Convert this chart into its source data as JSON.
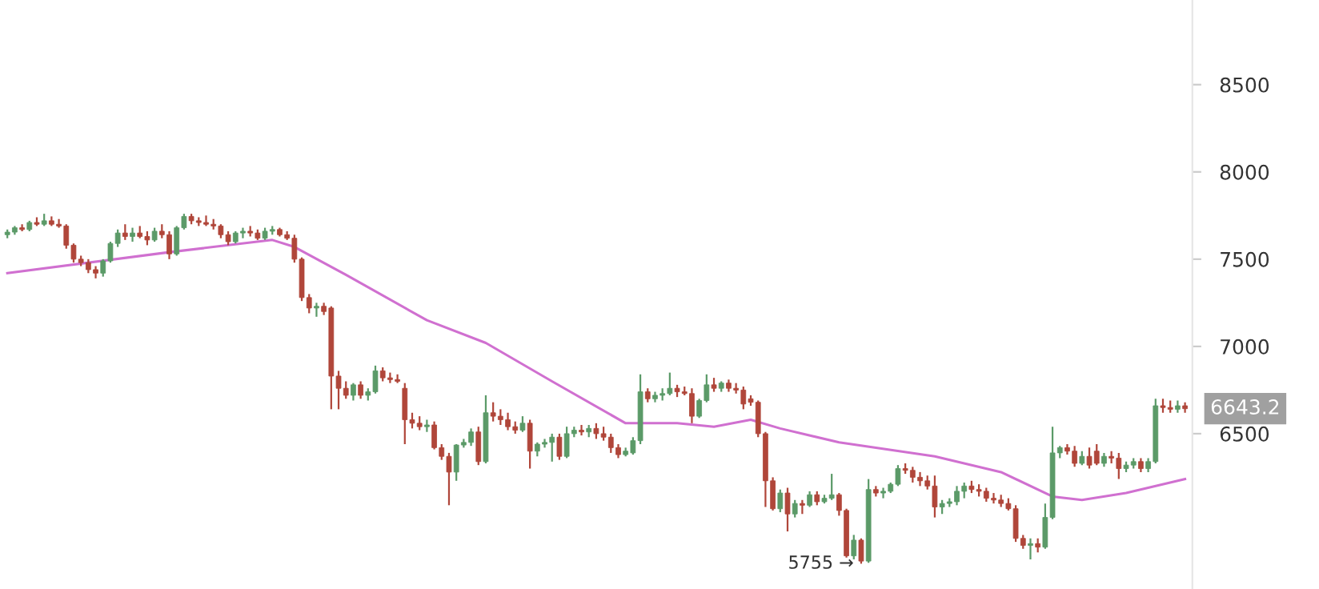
{
  "chart_data": {
    "type": "candlestick",
    "categories": [
      null,
      null,
      null,
      null,
      null,
      null,
      null,
      null,
      null,
      null,
      null,
      null,
      null,
      null,
      null,
      null,
      null,
      null,
      null,
      null,
      null,
      null,
      null,
      null,
      null,
      null,
      null,
      null,
      null,
      null,
      null,
      null,
      null,
      null,
      null,
      null,
      null,
      null,
      null,
      null,
      null,
      null,
      null,
      null,
      null,
      null,
      null,
      null,
      null,
      null,
      null,
      null,
      null,
      null,
      null,
      null,
      null,
      null,
      null,
      null,
      null,
      null,
      null,
      null,
      null,
      null,
      null,
      null,
      null,
      null,
      null,
      null,
      null,
      null,
      null,
      null,
      null,
      null,
      null,
      null,
      null,
      null,
      null,
      null,
      null,
      null,
      null,
      null,
      null,
      null,
      null,
      null,
      null,
      null,
      null,
      null,
      null,
      null,
      null,
      null,
      null,
      null,
      null,
      null,
      null,
      null,
      null,
      null,
      null,
      null,
      null,
      null,
      null,
      null,
      null,
      null,
      null,
      null,
      null,
      null,
      null,
      null,
      null,
      null,
      null,
      null,
      null,
      null,
      null,
      null,
      null,
      null,
      null,
      null,
      null,
      null,
      null,
      null,
      null,
      null,
      null,
      null,
      null,
      null,
      null,
      null,
      null,
      null,
      null,
      null,
      null,
      null,
      null,
      null,
      null,
      null,
      null,
      null,
      null,
      null,
      null
    ],
    "ohlc": [
      [
        7640,
        7670,
        7620,
        7655
      ],
      [
        7655,
        7690,
        7640,
        7680
      ],
      [
        7680,
        7700,
        7660,
        7670
      ],
      [
        7670,
        7720,
        7660,
        7710
      ],
      [
        7710,
        7740,
        7690,
        7700
      ],
      [
        7700,
        7760,
        7690,
        7720
      ],
      [
        7720,
        7745,
        7690,
        7700
      ],
      [
        7700,
        7730,
        7680,
        7690
      ],
      [
        7690,
        7700,
        7560,
        7580
      ],
      [
        7580,
        7590,
        7480,
        7500
      ],
      [
        7500,
        7520,
        7460,
        7480
      ],
      [
        7480,
        7500,
        7420,
        7440
      ],
      [
        7440,
        7460,
        7390,
        7420
      ],
      [
        7420,
        7500,
        7400,
        7490
      ],
      [
        7490,
        7600,
        7480,
        7590
      ],
      [
        7590,
        7670,
        7570,
        7650
      ],
      [
        7650,
        7700,
        7610,
        7630
      ],
      [
        7630,
        7680,
        7600,
        7650
      ],
      [
        7650,
        7690,
        7620,
        7630
      ],
      [
        7630,
        7660,
        7580,
        7610
      ],
      [
        7610,
        7680,
        7600,
        7660
      ],
      [
        7660,
        7700,
        7620,
        7640
      ],
      [
        7640,
        7660,
        7500,
        7530
      ],
      [
        7530,
        7690,
        7520,
        7680
      ],
      [
        7680,
        7760,
        7670,
        7745
      ],
      [
        7745,
        7760,
        7700,
        7720
      ],
      [
        7720,
        7740,
        7690,
        7710
      ],
      [
        7710,
        7750,
        7690,
        7700
      ],
      [
        7700,
        7730,
        7670,
        7690
      ],
      [
        7690,
        7700,
        7620,
        7640
      ],
      [
        7640,
        7660,
        7580,
        7600
      ],
      [
        7600,
        7660,
        7590,
        7650
      ],
      [
        7650,
        7680,
        7620,
        7660
      ],
      [
        7660,
        7690,
        7630,
        7650
      ],
      [
        7650,
        7670,
        7610,
        7620
      ],
      [
        7620,
        7680,
        7610,
        7660
      ],
      [
        7660,
        7690,
        7640,
        7670
      ],
      [
        7670,
        7680,
        7630,
        7640
      ],
      [
        7640,
        7660,
        7610,
        7620
      ],
      [
        7620,
        7640,
        7480,
        7500
      ],
      [
        7500,
        7510,
        7260,
        7280
      ],
      [
        7280,
        7300,
        7190,
        7220
      ],
      [
        7220,
        7250,
        7170,
        7230
      ],
      [
        7230,
        7250,
        7180,
        7200
      ],
      [
        7220,
        7230,
        6640,
        6830
      ],
      [
        6830,
        6860,
        6640,
        6760
      ],
      [
        6760,
        6800,
        6700,
        6720
      ],
      [
        6720,
        6790,
        6690,
        6780
      ],
      [
        6780,
        6800,
        6700,
        6720
      ],
      [
        6720,
        6760,
        6690,
        6740
      ],
      [
        6740,
        6890,
        6730,
        6860
      ],
      [
        6860,
        6880,
        6800,
        6820
      ],
      [
        6820,
        6850,
        6790,
        6810
      ],
      [
        6810,
        6840,
        6790,
        6800
      ],
      [
        6760,
        6790,
        6440,
        6580
      ],
      [
        6580,
        6620,
        6530,
        6560
      ],
      [
        6560,
        6600,
        6520,
        6540
      ],
      [
        6540,
        6580,
        6510,
        6550
      ],
      [
        6550,
        6570,
        6410,
        6420
      ],
      [
        6420,
        6440,
        6350,
        6370
      ],
      [
        6370,
        6390,
        6090,
        6280
      ],
      [
        6280,
        6440,
        6230,
        6435
      ],
      [
        6435,
        6470,
        6420,
        6450
      ],
      [
        6450,
        6530,
        6430,
        6510
      ],
      [
        6510,
        6540,
        6320,
        6340
      ],
      [
        6340,
        6720,
        6330,
        6620
      ],
      [
        6620,
        6680,
        6570,
        6600
      ],
      [
        6600,
        6640,
        6550,
        6580
      ],
      [
        6580,
        6620,
        6520,
        6540
      ],
      [
        6540,
        6570,
        6500,
        6520
      ],
      [
        6520,
        6600,
        6510,
        6560
      ],
      [
        6560,
        6580,
        6300,
        6400
      ],
      [
        6400,
        6450,
        6370,
        6440
      ],
      [
        6440,
        6470,
        6420,
        6450
      ],
      [
        6450,
        6500,
        6340,
        6480
      ],
      [
        6480,
        6500,
        6350,
        6370
      ],
      [
        6370,
        6540,
        6360,
        6500
      ],
      [
        6500,
        6540,
        6480,
        6520
      ],
      [
        6520,
        6550,
        6490,
        6510
      ],
      [
        6510,
        6550,
        6480,
        6530
      ],
      [
        6530,
        6560,
        6470,
        6500
      ],
      [
        6500,
        6540,
        6460,
        6480
      ],
      [
        6480,
        6500,
        6390,
        6420
      ],
      [
        6420,
        6440,
        6360,
        6380
      ],
      [
        6380,
        6420,
        6370,
        6400
      ],
      [
        6390,
        6480,
        6380,
        6460
      ],
      [
        6460,
        6840,
        6440,
        6740
      ],
      [
        6740,
        6760,
        6680,
        6700
      ],
      [
        6700,
        6740,
        6680,
        6720
      ],
      [
        6720,
        6760,
        6690,
        6730
      ],
      [
        6730,
        6850,
        6720,
        6760
      ],
      [
        6760,
        6780,
        6710,
        6740
      ],
      [
        6740,
        6770,
        6720,
        6730
      ],
      [
        6730,
        6760,
        6560,
        6600
      ],
      [
        6600,
        6700,
        6590,
        6690
      ],
      [
        6690,
        6840,
        6680,
        6780
      ],
      [
        6780,
        6820,
        6740,
        6760
      ],
      [
        6760,
        6800,
        6740,
        6790
      ],
      [
        6790,
        6810,
        6740,
        6760
      ],
      [
        6760,
        6790,
        6730,
        6750
      ],
      [
        6750,
        6770,
        6640,
        6670
      ],
      [
        6700,
        6720,
        6660,
        6680
      ],
      [
        6680,
        6690,
        6480,
        6500
      ],
      [
        6500,
        6510,
        6080,
        6230
      ],
      [
        6230,
        6250,
        6060,
        6070
      ],
      [
        6070,
        6180,
        6050,
        6160
      ],
      [
        6160,
        6190,
        5940,
        6040
      ],
      [
        6040,
        6120,
        6020,
        6100
      ],
      [
        6100,
        6120,
        6040,
        6090
      ],
      [
        6090,
        6170,
        6080,
        6150
      ],
      [
        6150,
        6170,
        6090,
        6110
      ],
      [
        6110,
        6150,
        6100,
        6130
      ],
      [
        6130,
        6270,
        6120,
        6150
      ],
      [
        6150,
        6160,
        6030,
        6060
      ],
      [
        6060,
        6070,
        5790,
        5800
      ],
      [
        5800,
        5920,
        5780,
        5890
      ],
      [
        5890,
        5900,
        5755,
        5770
      ],
      [
        5770,
        6240,
        5760,
        6180
      ],
      [
        6180,
        6200,
        6140,
        6160
      ],
      [
        6160,
        6190,
        6130,
        6170
      ],
      [
        6170,
        6220,
        6160,
        6210
      ],
      [
        6210,
        6320,
        6200,
        6300
      ],
      [
        6300,
        6330,
        6270,
        6290
      ],
      [
        6290,
        6310,
        6220,
        6250
      ],
      [
        6250,
        6280,
        6200,
        6230
      ],
      [
        6230,
        6260,
        6180,
        6200
      ],
      [
        6200,
        6260,
        6020,
        6080
      ],
      [
        6080,
        6120,
        6040,
        6100
      ],
      [
        6100,
        6130,
        6080,
        6110
      ],
      [
        6110,
        6200,
        6090,
        6170
      ],
      [
        6170,
        6220,
        6130,
        6200
      ],
      [
        6200,
        6230,
        6160,
        6180
      ],
      [
        6180,
        6210,
        6140,
        6170
      ],
      [
        6170,
        6190,
        6110,
        6130
      ],
      [
        6130,
        6160,
        6100,
        6120
      ],
      [
        6120,
        6150,
        6080,
        6100
      ],
      [
        6100,
        6130,
        6060,
        6070
      ],
      [
        6070,
        6090,
        5880,
        5900
      ],
      [
        5900,
        5920,
        5840,
        5860
      ],
      [
        5860,
        5900,
        5780,
        5870
      ],
      [
        5870,
        5900,
        5820,
        5850
      ],
      [
        5850,
        6100,
        5840,
        6020
      ],
      [
        6020,
        6540,
        6010,
        6390
      ],
      [
        6390,
        6430,
        6360,
        6420
      ],
      [
        6420,
        6440,
        6380,
        6400
      ],
      [
        6400,
        6430,
        6310,
        6330
      ],
      [
        6330,
        6400,
        6320,
        6370
      ],
      [
        6370,
        6420,
        6300,
        6320
      ],
      [
        6400,
        6440,
        6320,
        6330
      ],
      [
        6330,
        6390,
        6310,
        6370
      ],
      [
        6370,
        6400,
        6330,
        6360
      ],
      [
        6360,
        6390,
        6240,
        6300
      ],
      [
        6300,
        6340,
        6280,
        6320
      ],
      [
        6320,
        6360,
        6300,
        6340
      ],
      [
        6340,
        6360,
        6280,
        6300
      ],
      [
        6300,
        6360,
        6280,
        6340
      ],
      [
        6340,
        6700,
        6330,
        6660
      ],
      [
        6660,
        6700,
        6620,
        6650
      ],
      [
        6650,
        6690,
        6620,
        6640
      ],
      [
        6640,
        6690,
        6620,
        6660
      ],
      [
        6660,
        6680,
        6620,
        6643.2
      ]
    ],
    "series": [
      {
        "type": "line",
        "color": "#d070d0",
        "values": [
          7420,
          null,
          null,
          null,
          null,
          null,
          null,
          null,
          null,
          null,
          null,
          null,
          null,
          null,
          null,
          null,
          null,
          null,
          null,
          null,
          null,
          null,
          7540,
          null,
          null,
          null,
          null,
          null,
          null,
          null,
          null,
          null,
          null,
          null,
          null,
          null,
          7610,
          null,
          null,
          7570,
          null,
          null,
          null,
          null,
          null,
          null,
          7410,
          null,
          null,
          null,
          null,
          null,
          null,
          null,
          null,
          null,
          null,
          7150,
          null,
          null,
          null,
          null,
          null,
          null,
          null,
          7020,
          null,
          null,
          null,
          null,
          null,
          null,
          null,
          null,
          6800,
          null,
          null,
          null,
          null,
          null,
          null,
          null,
          null,
          null,
          6560,
          null,
          null,
          null,
          null,
          null,
          null,
          6560,
          null,
          null,
          null,
          null,
          6540,
          null,
          null,
          null,
          null,
          6580,
          null,
          null,
          null,
          6530,
          null,
          null,
          null,
          null,
          null,
          null,
          null,
          6450,
          null,
          null,
          null,
          null,
          null,
          null,
          null,
          null,
          null,
          null,
          null,
          null,
          6370,
          null,
          null,
          null,
          null,
          null,
          null,
          null,
          null,
          6280,
          null,
          null,
          null,
          null,
          null,
          null,
          6140,
          null,
          null,
          null,
          6120,
          null,
          null,
          null,
          null,
          null,
          6160,
          null,
          null,
          null,
          null,
          null,
          null,
          null,
          6240
        ]
      }
    ],
    "ylim": [
      5610,
      8985
    ],
    "yticks": [
      6500,
      7000,
      7500,
      8000,
      8500
    ],
    "grid": false,
    "annotations": [
      "5755 →",
      "6643.2"
    ]
  }
}
